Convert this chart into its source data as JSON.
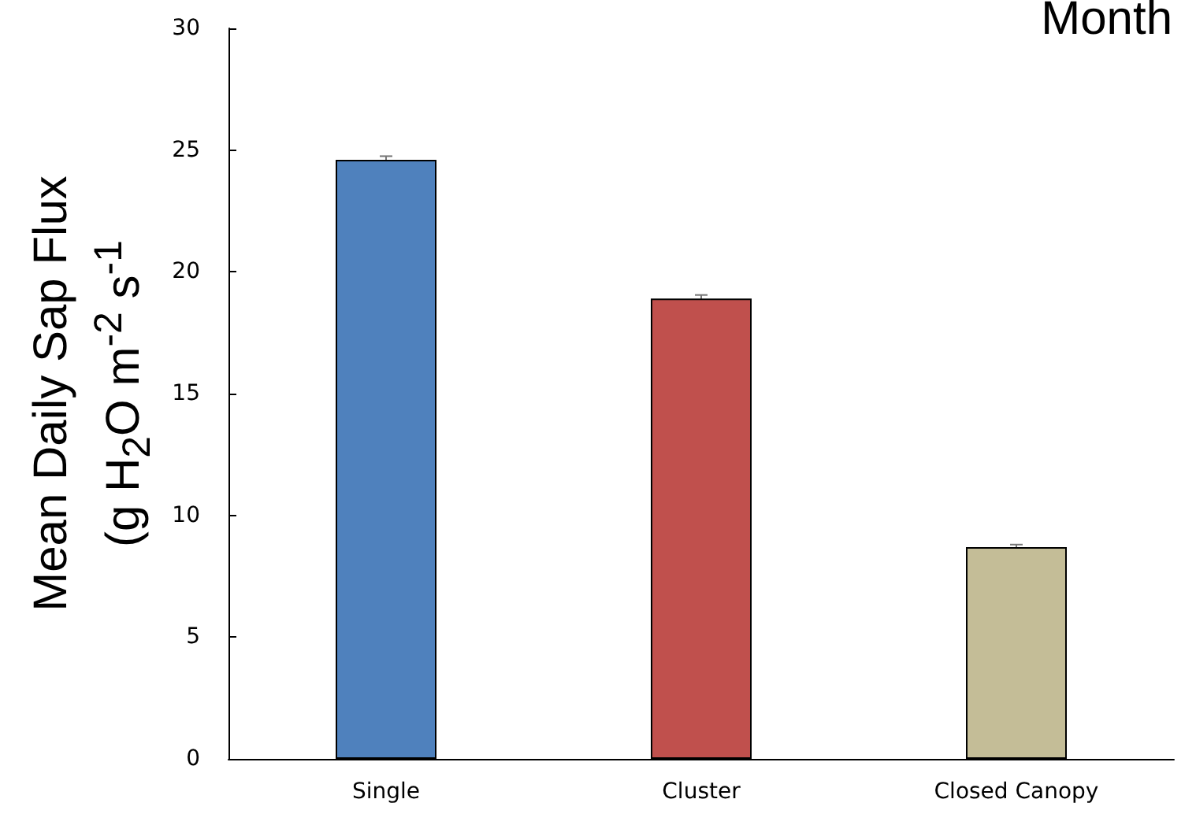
{
  "chart_data": {
    "type": "bar",
    "title": "Month",
    "ylabel": "Mean Daily Sap Flux\n(g H$_{2}$O m$^{-2}$ s$^{-1}$",
    "categories": [
      "Single",
      "Cluster",
      "Closed Canopy"
    ],
    "values": [
      24.6,
      18.9,
      8.7
    ],
    "colors": [
      "#4f81bd",
      "#c0504d",
      "#c4bd97"
    ],
    "errors": [
      0.15,
      0.15,
      0.1
    ],
    "ylim": [
      0,
      30
    ],
    "yticks": [
      0,
      5,
      10,
      15,
      20,
      25,
      30
    ],
    "grid": false
  }
}
